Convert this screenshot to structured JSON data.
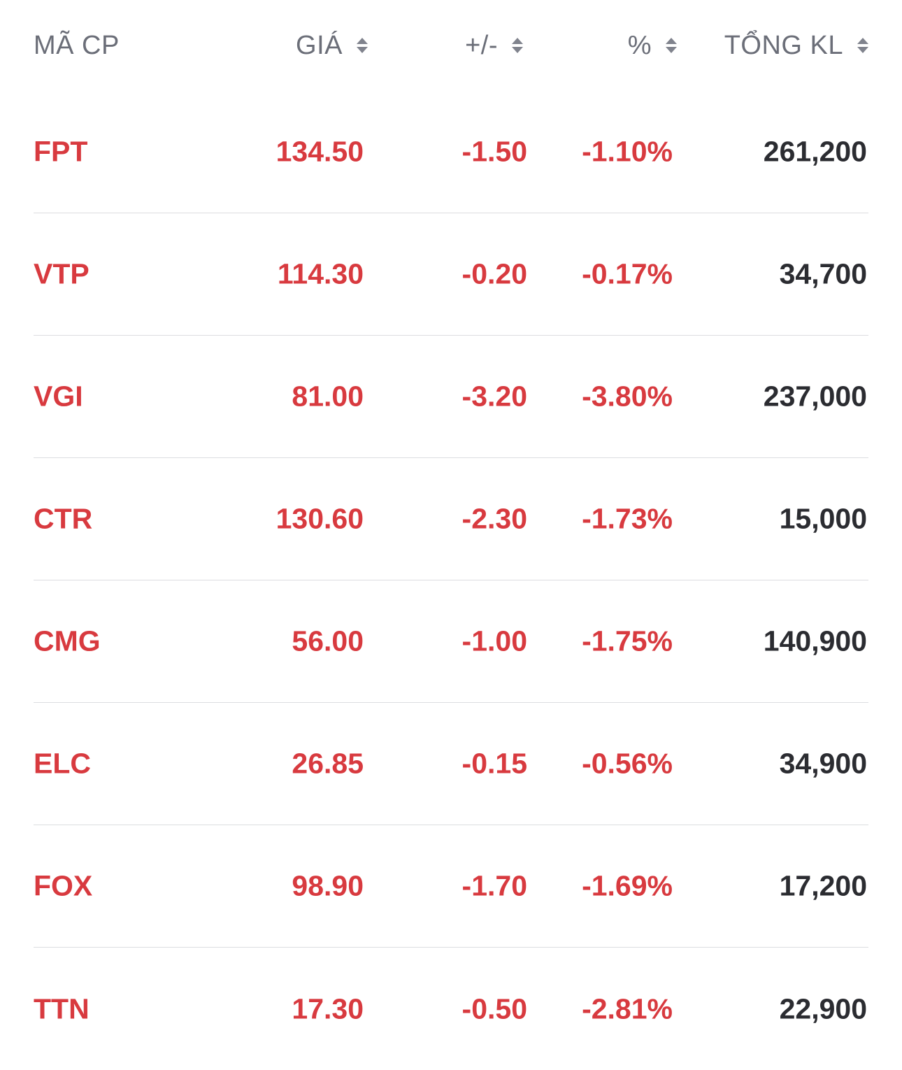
{
  "colors": {
    "down": "#d83a3f",
    "header_text": "#6b6e78",
    "volume_text": "#2b2c31",
    "divider": "#dcdde0",
    "background": "#ffffff"
  },
  "header": {
    "ticker": "MÃ CP",
    "price": "GIÁ",
    "change": "+/-",
    "percent": "%",
    "volume": "TỔNG KL"
  },
  "rows": [
    {
      "ticker": "FPT",
      "price": "134.50",
      "change": "-1.50",
      "percent": "-1.10%",
      "volume": "261,200"
    },
    {
      "ticker": "VTP",
      "price": "114.30",
      "change": "-0.20",
      "percent": "-0.17%",
      "volume": "34,700"
    },
    {
      "ticker": "VGI",
      "price": "81.00",
      "change": "-3.20",
      "percent": "-3.80%",
      "volume": "237,000"
    },
    {
      "ticker": "CTR",
      "price": "130.60",
      "change": "-2.30",
      "percent": "-1.73%",
      "volume": "15,000"
    },
    {
      "ticker": "CMG",
      "price": "56.00",
      "change": "-1.00",
      "percent": "-1.75%",
      "volume": "140,900"
    },
    {
      "ticker": "ELC",
      "price": "26.85",
      "change": "-0.15",
      "percent": "-0.56%",
      "volume": "34,900"
    },
    {
      "ticker": "FOX",
      "price": "98.90",
      "change": "-1.70",
      "percent": "-1.69%",
      "volume": "17,200"
    },
    {
      "ticker": "TTN",
      "price": "17.30",
      "change": "-0.50",
      "percent": "-2.81%",
      "volume": "22,900"
    }
  ]
}
